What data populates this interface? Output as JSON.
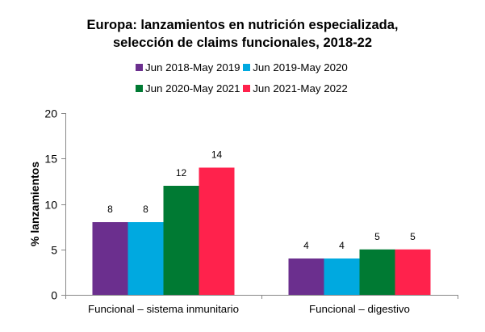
{
  "chart_data": {
    "type": "bar",
    "title_lines": [
      "Europa: lanzamientos en nutrición especializada,",
      "selección de claims funcionales, 2018-22"
    ],
    "xlabel": "",
    "ylabel": "% lanzamientos",
    "ylim": [
      0,
      20
    ],
    "yticks": [
      0,
      5,
      10,
      15,
      20
    ],
    "grid": false,
    "legend_position": "top",
    "categories": [
      "Funcional – sistema inmunitario",
      "Funcional – digestivo"
    ],
    "series": [
      {
        "name": "Jun 2018-May 2019",
        "color": "#6B2F8E",
        "values": [
          8,
          4
        ]
      },
      {
        "name": "Jun 2019-May 2020",
        "color": "#00A9E0",
        "values": [
          8,
          4
        ]
      },
      {
        "name": "Jun 2020-May 2021",
        "color": "#007A33",
        "values": [
          12,
          5
        ]
      },
      {
        "name": "Jun 2021-May 2022",
        "color": "#FF224C",
        "values": [
          14,
          5
        ]
      }
    ],
    "data_labels": true
  }
}
